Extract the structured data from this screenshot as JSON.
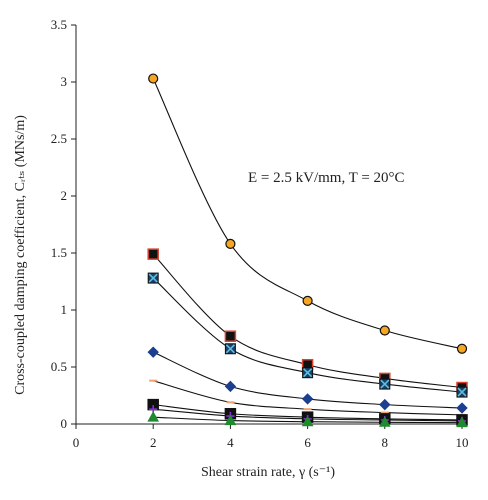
{
  "chart_data": {
    "type": "line",
    "title": "",
    "xlabel": "Shear strain rate, γ (s⁻¹)",
    "ylabel": "Cross-coupled damping coefficient, Cᵣₜₛ (MNs/m)",
    "annotation": "E = 2.5 kV/mm, T = 20°C",
    "xlim": [
      0,
      10
    ],
    "ylim": [
      0,
      3.5
    ],
    "grid": false,
    "legend": "none",
    "x": [
      2,
      4,
      6,
      8,
      10
    ],
    "x_ticks": [
      "0",
      "2",
      "4",
      "6",
      "8",
      "10"
    ],
    "y_ticks": [
      "0",
      "0.5",
      "1",
      "1.5",
      "2",
      "2.5",
      "3",
      "3.5"
    ],
    "series": [
      {
        "marker": "circle",
        "fill": "#f5a623",
        "edge": "#111111",
        "values": [
          3.03,
          1.58,
          1.08,
          0.82,
          0.66
        ]
      },
      {
        "marker": "square",
        "fill": "#111111",
        "edge": "#d9432f",
        "values": [
          1.49,
          0.77,
          0.52,
          0.4,
          0.32
        ]
      },
      {
        "marker": "square-x",
        "fill": "#1b3f66",
        "edge": "#5bc0de",
        "values": [
          1.28,
          0.66,
          0.45,
          0.35,
          0.28
        ]
      },
      {
        "marker": "diamond",
        "fill": "#1c3f8f",
        "edge": "#1c3f8f",
        "values": [
          0.63,
          0.33,
          0.22,
          0.17,
          0.14
        ]
      },
      {
        "marker": "dash",
        "fill": "#f0a070",
        "edge": "#f0a070",
        "values": [
          0.38,
          0.19,
          0.13,
          0.1,
          0.08
        ]
      },
      {
        "marker": "square",
        "fill": "#111111",
        "edge": "#111111",
        "values": [
          0.17,
          0.09,
          0.06,
          0.045,
          0.036
        ]
      },
      {
        "marker": "cross",
        "fill": "#8a2be2",
        "edge": "#8a2be2",
        "values": [
          0.13,
          0.07,
          0.045,
          0.035,
          0.027
        ]
      },
      {
        "marker": "triangle",
        "fill": "#1f8a2e",
        "edge": "#1f8a2e",
        "values": [
          0.06,
          0.03,
          0.02,
          0.015,
          0.012
        ]
      }
    ]
  }
}
